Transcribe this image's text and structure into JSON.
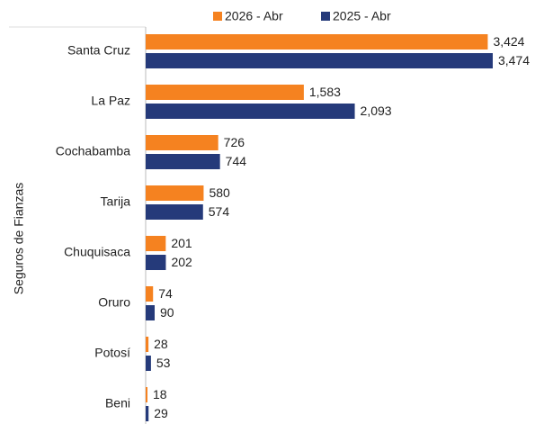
{
  "chart_data": {
    "type": "barh",
    "y_label": "Seguros de Fianzas",
    "categories": [
      "Santa Cruz",
      "La Paz",
      "Cochabamba",
      "Tarija",
      "Chuquisaca",
      "Oruro",
      "Potosí",
      "Beni"
    ],
    "series": [
      {
        "name": "2026 - Abr",
        "color": "#f58220",
        "values": [
          3424,
          1583,
          726,
          580,
          201,
          74,
          28,
          18
        ],
        "value_labels": [
          "3,424",
          "1,583",
          "726",
          "580",
          "201",
          "74",
          "28",
          "18"
        ]
      },
      {
        "name": "2025 - Abr",
        "color": "#253a7a",
        "values": [
          3474,
          2093,
          744,
          574,
          202,
          90,
          53,
          29
        ],
        "value_labels": [
          "3,474",
          "2,093",
          "744",
          "574",
          "202",
          "90",
          "53",
          "29"
        ]
      }
    ],
    "legend": "top"
  }
}
